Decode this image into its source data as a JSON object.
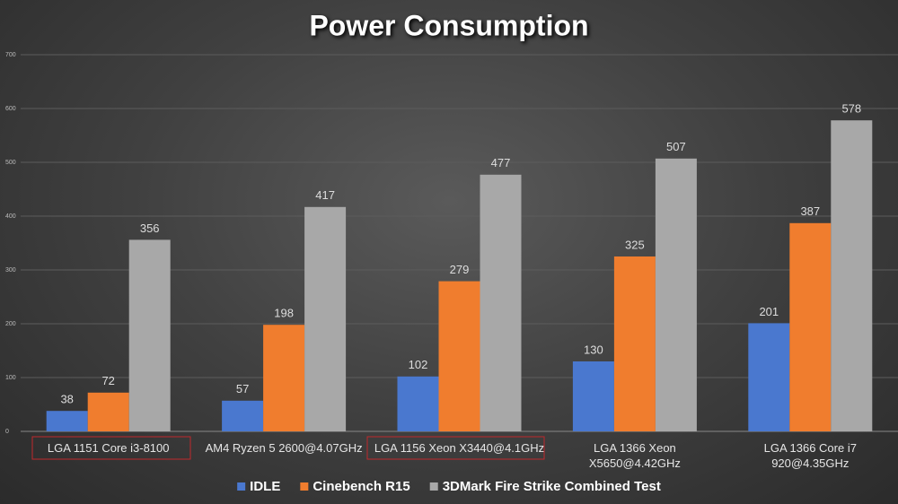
{
  "chart_data": {
    "type": "bar",
    "title": "Power Consumption",
    "categories": [
      "LGA 1151 Core i3-8100",
      "AM4 Ryzen 5 2600@4.07GHz",
      "LGA 1156 Xeon X3440@4.1GHz",
      "LGA 1366 Xeon X5650@4.42GHz",
      "LGA 1366 Core i7 920@4.35GHz"
    ],
    "series": [
      {
        "name": "IDLE",
        "color": "#4a78cf",
        "values": [
          38,
          57,
          102,
          130,
          201
        ]
      },
      {
        "name": "Cinebench R15",
        "color": "#f07d2e",
        "values": [
          72,
          198,
          279,
          325,
          387
        ]
      },
      {
        "name": "3DMark Fire Strike Combined Test",
        "color": "#a8a8a8",
        "values": [
          356,
          417,
          477,
          507,
          578
        ]
      }
    ],
    "ylim": [
      0,
      700
    ],
    "yticks": [
      0,
      100,
      200,
      300,
      400,
      500,
      600,
      700
    ],
    "grid": true,
    "legend": "bottom"
  }
}
